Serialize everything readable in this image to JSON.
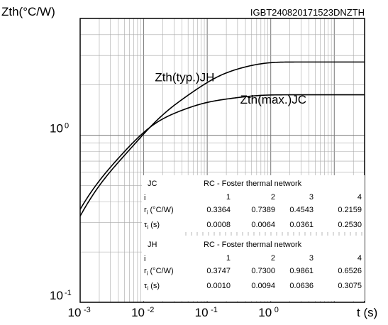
{
  "chart_data": {
    "type": "line",
    "ylabel": "Zth(°C/W)",
    "xlabel": "t (s)",
    "id_label": "IGBT240820171523DNZTH",
    "x_scale": "log",
    "y_scale": "log",
    "xlim": [
      0.001,
      30
    ],
    "ylim": [
      0.1,
      5
    ],
    "grid": true,
    "x_ticks": [
      {
        "value": 0.001,
        "base": "10",
        "exp": "-3"
      },
      {
        "value": 0.01,
        "base": "10",
        "exp": "-2"
      },
      {
        "value": 0.1,
        "base": "10",
        "exp": "-1"
      },
      {
        "value": 1,
        "base": "10",
        "exp": "0"
      }
    ],
    "y_ticks": [
      {
        "value": 0.1,
        "base": "10",
        "exp": "-1"
      },
      {
        "value": 1,
        "base": "10",
        "exp": "0"
      }
    ],
    "series": [
      {
        "name": "Zth(typ.)JH",
        "label_at": [
          0.015,
          2.1
        ],
        "r": [
          0.3747,
          0.73,
          0.9861,
          0.6526
        ],
        "tau": [
          0.001,
          0.0094,
          0.0636,
          0.3075
        ]
      },
      {
        "name": "Zth(max.)JC",
        "label_at": [
          0.33,
          1.55
        ],
        "r": [
          0.3364,
          0.7389,
          0.4543,
          0.2159
        ],
        "tau": [
          0.0008,
          0.0064,
          0.0361,
          0.253
        ]
      }
    ],
    "tables": [
      {
        "key": "JC",
        "title": "RC - Foster thermal network",
        "i_label": "i",
        "r_label": "r",
        "r_unit": " (°C/W)",
        "tau_label": "τ",
        "tau_unit": " (s)",
        "index": [
          "1",
          "2",
          "3",
          "4"
        ],
        "r": [
          "0.3364",
          "0.7389",
          "0.4543",
          "0.2159"
        ],
        "tau": [
          "0.0008",
          "0.0064",
          "0.0361",
          "0.2530"
        ]
      },
      {
        "key": "JH",
        "title": "RC - Foster thermal network",
        "i_label": "i",
        "r_label": "r",
        "r_unit": " (°C/W)",
        "tau_label": "τ",
        "tau_unit": " (s)",
        "index": [
          "1",
          "2",
          "3",
          "4"
        ],
        "r": [
          "0.3747",
          "0.7300",
          "0.9861",
          "0.6526"
        ],
        "tau": [
          "0.0010",
          "0.0094",
          "0.0636",
          "0.3075"
        ]
      }
    ]
  }
}
